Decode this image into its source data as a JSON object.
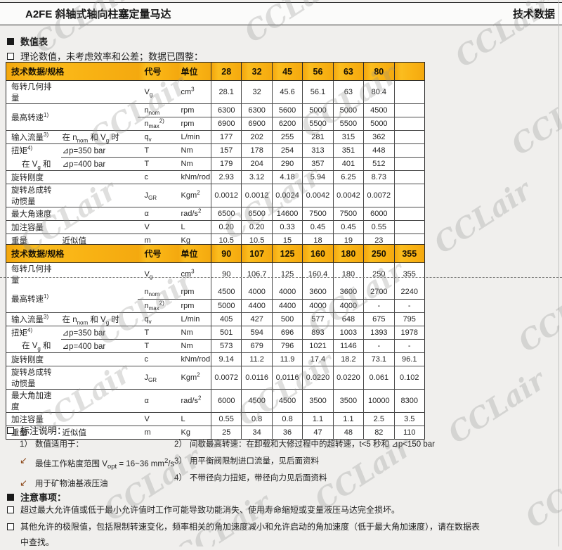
{
  "header": {
    "left": "A2FE 斜轴式轴向柱塞定量马达",
    "right": "技术数据"
  },
  "watermark": {
    "text": "CCLair"
  },
  "sections": {
    "values_title": "数值表",
    "values_note": "理论数值，未考虑效率和公差；数据已圆整："
  },
  "tables": [
    {
      "header": {
        "spec": "技术数据/规格",
        "symbol": "代号",
        "unit": "单位",
        "sizes": [
          "28",
          "32",
          "45",
          "56",
          "63",
          "80"
        ]
      },
      "trailing_empty": true,
      "page_break_after_first_row": false,
      "rows": [
        {
          "label": "每转几何排量",
          "sub": "",
          "sym": "V_{g}",
          "unit": "cm^{3}",
          "values": [
            "28.1",
            "32",
            "45.6",
            "56.1",
            "63",
            "80.4"
          ]
        },
        {
          "label": "最高转速^{1)}",
          "label_rowspan": 2,
          "sym": "n_{nom}",
          "unit": "rpm",
          "values": [
            "6300",
            "6300",
            "5600",
            "5000",
            "5000",
            "4500"
          ]
        },
        {
          "skip_label": true,
          "sym": "n_{max}^{2)}",
          "unit": "rpm",
          "values": [
            "6900",
            "6900",
            "6200",
            "5500",
            "5500",
            "5000"
          ]
        },
        {
          "label": "输入流量^{3)}",
          "sub": "在 n_{nom} 和 V_{g} 时",
          "sym": "q_{v}",
          "unit": "L/min",
          "values": [
            "177",
            "202",
            "255",
            "281",
            "315",
            "362"
          ]
        },
        {
          "label": "扭矩^{4)}",
          "sub": "⊿p=350 bar",
          "sym": "T",
          "unit": "Nm",
          "values": [
            "157",
            "178",
            "254",
            "313",
            "351",
            "448"
          ]
        },
        {
          "label": "在 V_{g} 和",
          "sub": "⊿p=400 bar",
          "sym": "T",
          "unit": "Nm",
          "indent": true,
          "no_label_top_border": true,
          "values": [
            "179",
            "204",
            "290",
            "357",
            "401",
            "512"
          ]
        },
        {
          "label": "旋转刚度",
          "sub": "",
          "sym": "c",
          "unit": "kNm/rod",
          "values": [
            "2.93",
            "3.12",
            "4.18",
            "5.94",
            "6.25",
            "8.73"
          ]
        },
        {
          "label": "旋转总成转动惯量",
          "sub": "",
          "sym": "J_{GR}",
          "unit": "Kgm^{2}",
          "values": [
            "0.0012",
            "0.0012",
            "0.0024",
            "0.0042",
            "0.0042",
            "0.0072"
          ]
        },
        {
          "label": "最大角速度",
          "sub": "",
          "sym": "α",
          "unit": "rad/s^{2}",
          "values": [
            "6500",
            "6500",
            "14600",
            "7500",
            "7500",
            "6000"
          ]
        },
        {
          "label": "加注容量",
          "sub": "",
          "sym": "V",
          "unit": "L",
          "values": [
            "0.20",
            "0.20",
            "0.33",
            "0.45",
            "0.45",
            "0.55"
          ]
        },
        {
          "label": "重量",
          "sub": "近似值",
          "sym": "m",
          "unit": "Kg",
          "values": [
            "10.5",
            "10.5",
            "15",
            "18",
            "19",
            "23"
          ]
        }
      ]
    },
    {
      "header": {
        "spec": "技术数据/规格",
        "symbol": "代号",
        "unit": "单位",
        "sizes": [
          "90",
          "107",
          "125",
          "160",
          "180",
          "250",
          "355"
        ]
      },
      "trailing_empty": false,
      "page_break_after_first_row": true,
      "rows": [
        {
          "label": "每转几何排量",
          "sub": "",
          "sym": "V_{g}",
          "unit": "cm^{3}",
          "values": [
            "90",
            "106.7",
            "125",
            "160.4",
            "180",
            "250",
            "355"
          ]
        },
        {
          "label": "最高转速^{1)}",
          "label_rowspan": 2,
          "sym": "n_{nom}",
          "unit": "rpm",
          "values": [
            "4500",
            "4000",
            "4000",
            "3600",
            "3600",
            "2700",
            "2240"
          ]
        },
        {
          "skip_label": true,
          "sym": "n_{max}^{2)}",
          "unit": "rpm",
          "values": [
            "5000",
            "4400",
            "4400",
            "4000",
            "4000",
            "-",
            "-"
          ]
        },
        {
          "label": "输入流量^{3)}",
          "sub": "在 n_{nom} 和 V_{g} 时",
          "sym": "q_{v}",
          "unit": "L/min",
          "values": [
            "405",
            "427",
            "500",
            "577",
            "648",
            "675",
            "795"
          ]
        },
        {
          "label": "扭矩^{4)}",
          "sub": "⊿p=350 bar",
          "sym": "T",
          "unit": "Nm",
          "values": [
            "501",
            "594",
            "696",
            "893",
            "1003",
            "1393",
            "1978"
          ]
        },
        {
          "label": "在 V_{g} 和",
          "sub": "⊿p=400 bar",
          "sym": "T",
          "unit": "Nm",
          "indent": true,
          "no_label_top_border": true,
          "values": [
            "573",
            "679",
            "796",
            "1021",
            "1146",
            "-",
            "-"
          ]
        },
        {
          "label": "旋转刚度",
          "sub": "",
          "sym": "c",
          "unit": "kNm/rod",
          "values": [
            "9.14",
            "11.2",
            "11.9",
            "17.4",
            "18.2",
            "73.1",
            "96.1"
          ]
        },
        {
          "label": "旋转总成转动惯量",
          "sub": "",
          "sym": "J_{GR}",
          "unit": "Kgm^{2}",
          "values": [
            "0.0072",
            "0.0116",
            "0.0116",
            "0.0220",
            "0.0220",
            "0.061",
            "0.102"
          ]
        },
        {
          "label": "最大角加速度",
          "sub": "",
          "sym": "α",
          "unit": "rad/s^{2}",
          "values": [
            "6000",
            "4500",
            "4500",
            "3500",
            "3500",
            "10000",
            "8300"
          ]
        },
        {
          "label": "加注容量",
          "sub": "",
          "sym": "V",
          "unit": "L",
          "values": [
            "0.55",
            "0.8",
            "0.8",
            "1.1",
            "1.1",
            "2.5",
            "3.5"
          ]
        },
        {
          "label": "重量",
          "sub": "近似值",
          "sym": "m",
          "unit": "Kg",
          "values": [
            "25",
            "34",
            "36",
            "47",
            "48",
            "82",
            "110"
          ]
        }
      ]
    }
  ],
  "footnotes": {
    "title": "标注说明：",
    "left": [
      {
        "marker": "1）",
        "text": "数值适用于："
      },
      {
        "marker": "↙",
        "text": "最佳工作粘度范围 V_{opt} = 16~36 mm^{2}/s"
      },
      {
        "marker": "↙",
        "text": "用于矿物油基液压油"
      }
    ],
    "right": [
      {
        "marker": "2）",
        "text": "间歇最高转速：在卸载和大修过程中的超转速，t<5 秒和 ⊿p<150 bar"
      },
      {
        "marker": "3）",
        "text": "用平衡阀限制进口流量，见后面资料"
      },
      {
        "marker": "4）",
        "text": "不带径向力扭矩，带径向力见后面资料"
      }
    ]
  },
  "notice": {
    "title": "注意事项：",
    "items": [
      "超过最大允许值或低于最小允许值时工作可能导致功能消失、使用寿命缩短或变量液压马达完全损坏。",
      "其他允许的极限值，包括限制转速变化，频率相关的角加速度减小和允许启动的角加速度（低于最大角加速度），请在数据表中查找。"
    ]
  }
}
